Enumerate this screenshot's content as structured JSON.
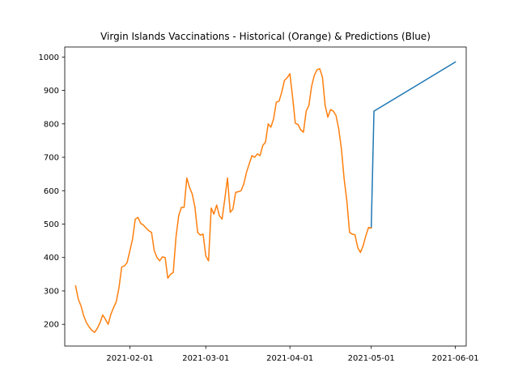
{
  "chart_data": {
    "type": "line",
    "title": "Virgin Islands Vaccinations - Historical (Orange) & Predictions (Blue)",
    "xlabel": "",
    "ylabel": "",
    "x_range": [
      "2021-01-08",
      "2021-06-05"
    ],
    "ylim": [
      135,
      1030
    ],
    "grid": false,
    "legend": "none",
    "x_ticks": [
      "2021-02-01",
      "2021-03-01",
      "2021-04-01",
      "2021-05-01",
      "2021-06-01"
    ],
    "y_ticks": [
      200,
      300,
      400,
      500,
      600,
      700,
      800,
      900,
      1000
    ],
    "series": [
      {
        "color": "#1f77b4",
        "points": [
          [
            "2021-05-01",
            490
          ],
          [
            "2021-05-02",
            838
          ],
          [
            "2021-06-01",
            985
          ]
        ]
      },
      {
        "color": "#ff7f0e",
        "points": [
          [
            "2021-01-12",
            315
          ],
          [
            "2021-01-13",
            275
          ],
          [
            "2021-01-14",
            255
          ],
          [
            "2021-01-15",
            225
          ],
          [
            "2021-01-16",
            205
          ],
          [
            "2021-01-17",
            192
          ],
          [
            "2021-01-18",
            182
          ],
          [
            "2021-01-19",
            176
          ],
          [
            "2021-01-20",
            188
          ],
          [
            "2021-01-21",
            205
          ],
          [
            "2021-01-22",
            228
          ],
          [
            "2021-01-23",
            215
          ],
          [
            "2021-01-24",
            200
          ],
          [
            "2021-01-25",
            230
          ],
          [
            "2021-01-26",
            250
          ],
          [
            "2021-01-27",
            268
          ],
          [
            "2021-01-28",
            310
          ],
          [
            "2021-01-29",
            372
          ],
          [
            "2021-01-30",
            375
          ],
          [
            "2021-01-31",
            385
          ],
          [
            "2021-02-01",
            420
          ],
          [
            "2021-02-02",
            455
          ],
          [
            "2021-02-03",
            515
          ],
          [
            "2021-02-04",
            520
          ],
          [
            "2021-02-05",
            502
          ],
          [
            "2021-02-06",
            497
          ],
          [
            "2021-02-07",
            488
          ],
          [
            "2021-02-08",
            480
          ],
          [
            "2021-02-09",
            475
          ],
          [
            "2021-02-10",
            420
          ],
          [
            "2021-02-11",
            400
          ],
          [
            "2021-02-12",
            390
          ],
          [
            "2021-02-13",
            402
          ],
          [
            "2021-02-14",
            400
          ],
          [
            "2021-02-15",
            338
          ],
          [
            "2021-02-16",
            350
          ],
          [
            "2021-02-17",
            355
          ],
          [
            "2021-02-18",
            460
          ],
          [
            "2021-02-19",
            525
          ],
          [
            "2021-02-20",
            550
          ],
          [
            "2021-02-21",
            550
          ],
          [
            "2021-02-22",
            638
          ],
          [
            "2021-02-23",
            610
          ],
          [
            "2021-02-24",
            590
          ],
          [
            "2021-02-25",
            550
          ],
          [
            "2021-02-26",
            475
          ],
          [
            "2021-02-27",
            467
          ],
          [
            "2021-02-28",
            470
          ],
          [
            "2021-03-01",
            405
          ],
          [
            "2021-03-02",
            390
          ],
          [
            "2021-03-03",
            548
          ],
          [
            "2021-03-04",
            530
          ],
          [
            "2021-03-05",
            557
          ],
          [
            "2021-03-06",
            525
          ],
          [
            "2021-03-07",
            515
          ],
          [
            "2021-03-08",
            575
          ],
          [
            "2021-03-09",
            638
          ],
          [
            "2021-03-10",
            535
          ],
          [
            "2021-03-11",
            545
          ],
          [
            "2021-03-12",
            595
          ],
          [
            "2021-03-13",
            597
          ],
          [
            "2021-03-14",
            600
          ],
          [
            "2021-03-15",
            620
          ],
          [
            "2021-03-16",
            655
          ],
          [
            "2021-03-17",
            680
          ],
          [
            "2021-03-18",
            705
          ],
          [
            "2021-03-19",
            700
          ],
          [
            "2021-03-20",
            710
          ],
          [
            "2021-03-21",
            705
          ],
          [
            "2021-03-22",
            735
          ],
          [
            "2021-03-23",
            745
          ],
          [
            "2021-03-24",
            800
          ],
          [
            "2021-03-25",
            790
          ],
          [
            "2021-03-26",
            815
          ],
          [
            "2021-03-27",
            865
          ],
          [
            "2021-03-28",
            868
          ],
          [
            "2021-03-29",
            895
          ],
          [
            "2021-03-30",
            930
          ],
          [
            "2021-03-31",
            938
          ],
          [
            "2021-04-01",
            950
          ],
          [
            "2021-04-02",
            880
          ],
          [
            "2021-04-03",
            802
          ],
          [
            "2021-04-04",
            798
          ],
          [
            "2021-04-05",
            782
          ],
          [
            "2021-04-06",
            775
          ],
          [
            "2021-04-07",
            838
          ],
          [
            "2021-04-08",
            855
          ],
          [
            "2021-04-09",
            912
          ],
          [
            "2021-04-10",
            945
          ],
          [
            "2021-04-11",
            962
          ],
          [
            "2021-04-12",
            965
          ],
          [
            "2021-04-13",
            940
          ],
          [
            "2021-04-14",
            855
          ],
          [
            "2021-04-15",
            820
          ],
          [
            "2021-04-16",
            843
          ],
          [
            "2021-04-17",
            838
          ],
          [
            "2021-04-18",
            825
          ],
          [
            "2021-04-19",
            785
          ],
          [
            "2021-04-20",
            725
          ],
          [
            "2021-04-21",
            635
          ],
          [
            "2021-04-22",
            570
          ],
          [
            "2021-04-23",
            475
          ],
          [
            "2021-04-24",
            470
          ],
          [
            "2021-04-25",
            468
          ],
          [
            "2021-04-26",
            430
          ],
          [
            "2021-04-27",
            415
          ],
          [
            "2021-04-28",
            435
          ],
          [
            "2021-04-29",
            465
          ],
          [
            "2021-04-30",
            490
          ],
          [
            "2021-05-01",
            488
          ]
        ]
      }
    ]
  }
}
